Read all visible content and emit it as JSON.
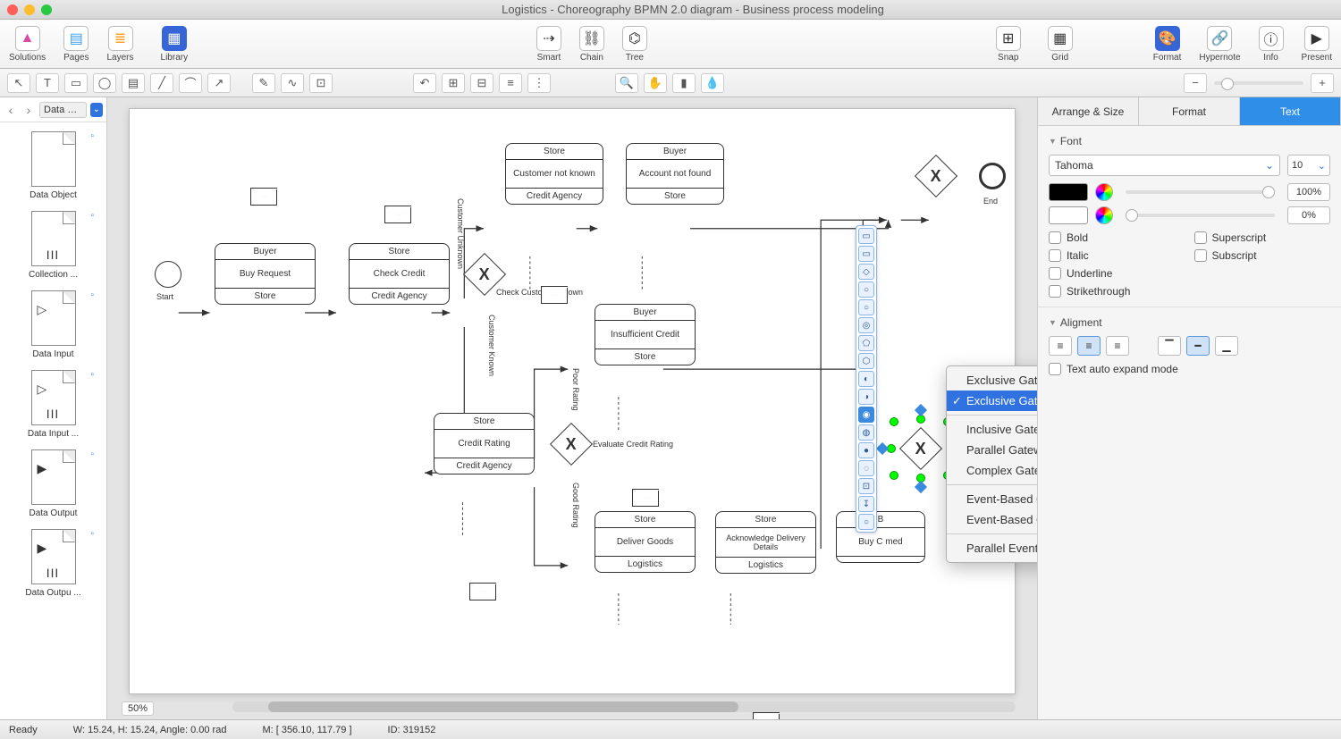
{
  "window": {
    "title": "Logistics - Choreography BPMN 2.0 diagram - Business process modeling"
  },
  "maintoolbar": {
    "left": [
      {
        "label": "Solutions",
        "glyph": "▲",
        "color": "#d64ba8"
      },
      {
        "label": "Pages",
        "glyph": "▤",
        "color": "#3a9ae8"
      },
      {
        "label": "Layers",
        "glyph": "≣",
        "color": "#f7a028"
      }
    ],
    "library": {
      "label": "Library",
      "glyph": "▦",
      "hl": true
    },
    "center": [
      {
        "label": "Smart",
        "glyph": "⇢"
      },
      {
        "label": "Chain",
        "glyph": "⛓"
      },
      {
        "label": "Tree",
        "glyph": "⌬"
      }
    ],
    "snap": {
      "label": "Snap",
      "glyph": "⊞"
    },
    "grid": {
      "label": "Grid",
      "glyph": "▦"
    },
    "right": [
      {
        "label": "Format",
        "glyph": "🎨",
        "hl": true
      },
      {
        "label": "Hypernote",
        "glyph": "🔗"
      },
      {
        "label": "Info",
        "glyph": "ⓘ"
      },
      {
        "label": "Present",
        "glyph": "▶"
      }
    ]
  },
  "sidebar": {
    "crumb": "Data B…",
    "items": [
      {
        "label": "Data Object",
        "bars": false
      },
      {
        "label": "Collection ...",
        "bars": true
      },
      {
        "label": "Data Input",
        "arrow": "▷"
      },
      {
        "label": "Data Input  ...",
        "arrow": "▷",
        "bars": true
      },
      {
        "label": "Data Output",
        "arrow": "▶"
      },
      {
        "label": "Data Outpu ...",
        "arrow": "▶",
        "bars": true
      }
    ]
  },
  "canvas": {
    "zoom": "50%",
    "start_label": "Start",
    "end_label": "End",
    "check_cust": "Check Customer Known",
    "eval_credit": "Evaluate Credit Rating",
    "cust_unknown": "Customer Unknown",
    "cust_known": "Customer Known",
    "poor_rating": "Poor Rating",
    "good_rating": "Good Rating",
    "chor": {
      "buy_request": {
        "top": "Buyer",
        "mid": "Buy Request",
        "bottom": "Store"
      },
      "check_credit": {
        "top": "Store",
        "mid": "Check Credit",
        "bottom": "Credit Agency"
      },
      "cust_notknown": {
        "top": "Store",
        "mid": "Customer not known",
        "bottom": "Credit Agency"
      },
      "acct_notfound": {
        "top": "Buyer",
        "mid": "Account not found",
        "bottom": "Store"
      },
      "insuff": {
        "top": "Buyer",
        "mid": "Insufficient Credit",
        "bottom": "Store"
      },
      "credit_rating": {
        "top": "Store",
        "mid": "Credit Rating",
        "bottom": "Credit Agency"
      },
      "deliver": {
        "top": "Store",
        "mid": "Deliver Goods",
        "bottom": "Logistics"
      },
      "ack": {
        "top": "Store",
        "mid": "Acknowledge Delivery Details",
        "bottom": "Logistics"
      },
      "buyconf": {
        "top": "B",
        "mid": "Buy C        med",
        "bottom": ""
      }
    }
  },
  "iconstrip": [
    "▭",
    "▭",
    "◇",
    "○",
    "○",
    "◎",
    "⬠",
    "⬡",
    "◐",
    "◑",
    "◉",
    "◍",
    "●",
    "◌",
    "⊡",
    "↧",
    "○"
  ],
  "ctxmenu": {
    "items": [
      {
        "t": "Exclusive Gateway - without Marker"
      },
      {
        "t": "Exclusive Gateway - with Marker",
        "sel": true
      },
      {
        "sep": true
      },
      {
        "t": "Inclusive Gateway"
      },
      {
        "t": "Parallel Gateway"
      },
      {
        "t": "Complex Gateway"
      },
      {
        "sep": true
      },
      {
        "t": "Event-Based Gateway"
      },
      {
        "t": "Event-Based Gateway to Start a Process"
      },
      {
        "sep": true
      },
      {
        "t": "Parallel  Event-Based Gateway to Start a Process"
      }
    ]
  },
  "rightpanel": {
    "tabs": [
      "Arrange & Size",
      "Format",
      "Text"
    ],
    "active": 2,
    "font": {
      "title": "Font",
      "family": "Tahoma",
      "size": "10",
      "color": "#000000",
      "pct1": "100%",
      "pct2": "0%"
    },
    "styles": [
      "Bold",
      "Italic",
      "Underline",
      "Strikethrough"
    ],
    "styles2": [
      "Superscript",
      "Subscript"
    ],
    "alignment": {
      "title": "Aligment",
      "auto": "Text auto expand mode"
    }
  },
  "status": {
    "ready": "Ready",
    "dims": "W: 15.24,  H: 15.24,  Angle: 0.00 rad",
    "mouse": "M: [ 356.10, 117.79 ]",
    "id": "ID: 319152"
  }
}
